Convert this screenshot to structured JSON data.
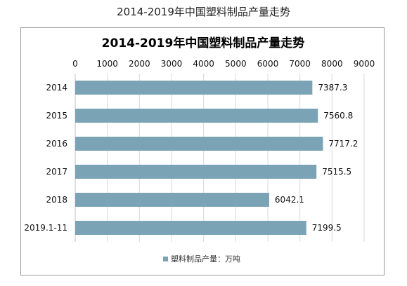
{
  "header": {
    "title": "2014-2019年中国塑料制品产量走势"
  },
  "chart_data": {
    "type": "bar",
    "orientation": "horizontal",
    "title": "2014-2019年中国塑料制品产量走势",
    "categories": [
      "2014",
      "2015",
      "2016",
      "2017",
      "2018",
      "2019.1-11"
    ],
    "series": [
      {
        "name": "塑料制品产量：万吨",
        "values": [
          7387.3,
          7560.8,
          7717.2,
          7515.5,
          6042.1,
          7199.5
        ]
      }
    ],
    "xlim": [
      0,
      9000
    ],
    "xticks": [
      0,
      1000,
      2000,
      3000,
      4000,
      5000,
      6000,
      7000,
      8000,
      9000
    ],
    "x_axis_position": "top",
    "grid": true,
    "legend_position": "bottom",
    "bar_color": "#7ba3b6"
  }
}
